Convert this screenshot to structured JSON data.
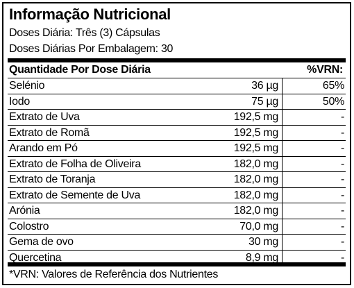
{
  "label": {
    "title": "Informação Nutricional",
    "daily_doses": "Doses Diária: Três (3) Cápsulas",
    "doses_per_package": "Doses Diárias Por Embalagem: 30",
    "header": {
      "quantity": "Quantidade Por Dose Diária",
      "vrn": "%VRN:"
    },
    "rows": [
      {
        "name": "Selénio",
        "amount": "36 µg",
        "vrn": "65%"
      },
      {
        "name": "Iodo",
        "amount": "75 µg",
        "vrn": "50%"
      },
      {
        "name": "Extrato de Uva",
        "amount": "192,5 mg",
        "vrn": "-"
      },
      {
        "name": "Extrato de Romã",
        "amount": "192,5 mg",
        "vrn": "-"
      },
      {
        "name": "Arando em Pó",
        "amount": "192,5 mg",
        "vrn": "-"
      },
      {
        "name": "Extrato de Folha de Oliveira",
        "amount": "182,0 mg",
        "vrn": "-"
      },
      {
        "name": "Extrato de Toranja",
        "amount": "182,0 mg",
        "vrn": "-"
      },
      {
        "name": "Extrato de Semente de Uva",
        "amount": "182,0 mg",
        "vrn": "-"
      },
      {
        "name": "Arónia",
        "amount": "182,0 mg",
        "vrn": "-"
      },
      {
        "name": "Colostro",
        "amount": "70,0 mg",
        "vrn": "-"
      },
      {
        "name": "Gema de ovo",
        "amount": "30 mg",
        "vrn": "-"
      },
      {
        "name": "Quercetina",
        "amount": "8,9 mg",
        "vrn": "-"
      }
    ],
    "footnote": "*VRN: Valores de Referência dos Nutrientes"
  }
}
